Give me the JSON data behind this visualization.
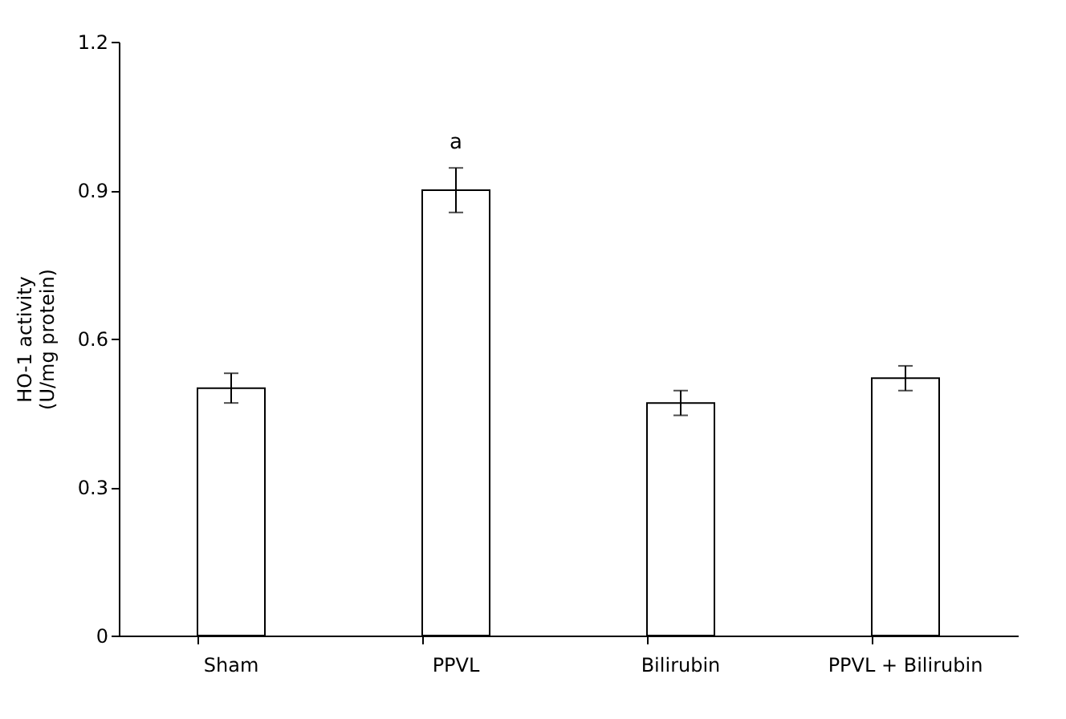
{
  "chart_data": {
    "type": "bar",
    "ylabel": "HO-1 activity\n(U/mg protein)",
    "categories": [
      "Sham",
      "PPVL",
      "Bilirubin",
      "PPVL + Bilirubin"
    ],
    "values": [
      0.5,
      0.9,
      0.47,
      0.52
    ],
    "errors": [
      0.03,
      0.045,
      0.025,
      0.025
    ],
    "color": "#ffffff",
    "ylim": [
      0,
      1.2
    ],
    "yticks": [
      0,
      0.3,
      0.6,
      0.9,
      1.2
    ],
    "grid": false,
    "annotations": [
      "a"
    ]
  }
}
